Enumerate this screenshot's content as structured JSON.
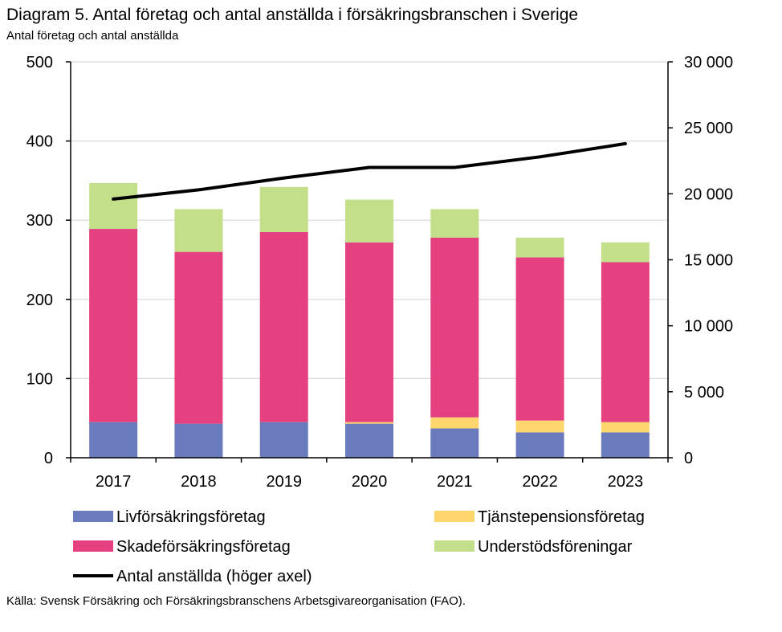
{
  "chart_data": {
    "type": "bar",
    "stacked": true,
    "title": "Diagram 5. Antal företag och antal anställda i försäkringsbranschen i Sverige",
    "subtitle": "Antal företag och antal anställda",
    "source": "Källa: Svensk Försäkring och Försäkringsbranschens Arbetsgivareorganisation (FAO).",
    "categories": [
      "2017",
      "2018",
      "2019",
      "2020",
      "2021",
      "2022",
      "2023"
    ],
    "ylim": [
      0,
      500
    ],
    "y_ticks": [
      0,
      100,
      200,
      300,
      400,
      500
    ],
    "y_tick_labels": [
      "0",
      "100",
      "200",
      "300",
      "400",
      "500"
    ],
    "y2lim": [
      0,
      30000
    ],
    "y2_ticks": [
      0,
      5000,
      10000,
      15000,
      20000,
      25000,
      30000
    ],
    "y2_tick_labels": [
      "0",
      "5 000",
      "10 000",
      "15 000",
      "20 000",
      "25 000",
      "30 000"
    ],
    "grid": true,
    "series": [
      {
        "name": "Livförsäkringsföretag",
        "color": "#6a7bbd",
        "axis": "left",
        "kind": "bar",
        "values": [
          45,
          43,
          45,
          43,
          37,
          32,
          32
        ]
      },
      {
        "name": "Tjänstepensionsföretag",
        "color": "#ffd66e",
        "axis": "left",
        "kind": "bar",
        "values": [
          0,
          0,
          0,
          2,
          14,
          15,
          13
        ]
      },
      {
        "name": "Skadeförsäkringsföretag",
        "color": "#e5407f",
        "axis": "left",
        "kind": "bar",
        "values": [
          244,
          217,
          240,
          227,
          227,
          206,
          202
        ]
      },
      {
        "name": "Understödsföreningar",
        "color": "#c3df8a",
        "axis": "left",
        "kind": "bar",
        "values": [
          58,
          54,
          57,
          54,
          36,
          25,
          25
        ]
      },
      {
        "name": "Antal anställda (höger axel)",
        "color": "#000000",
        "axis": "right",
        "kind": "line",
        "values": [
          19600,
          20300,
          21200,
          22000,
          22000,
          22800,
          23800
        ]
      }
    ],
    "legend": [
      {
        "label": "Livförsäkringsföretag",
        "color": "#6a7bbd",
        "kind": "bar"
      },
      {
        "label": "Tjänstepensionsföretag",
        "color": "#ffd66e",
        "kind": "bar"
      },
      {
        "label": "Skadeförsäkringsföretag",
        "color": "#e5407f",
        "kind": "bar"
      },
      {
        "label": "Understödsföreningar",
        "color": "#c3df8a",
        "kind": "bar"
      },
      {
        "label": "Antal anställda (höger axel)",
        "color": "#000000",
        "kind": "line"
      }
    ],
    "legend_position": "bottom"
  }
}
